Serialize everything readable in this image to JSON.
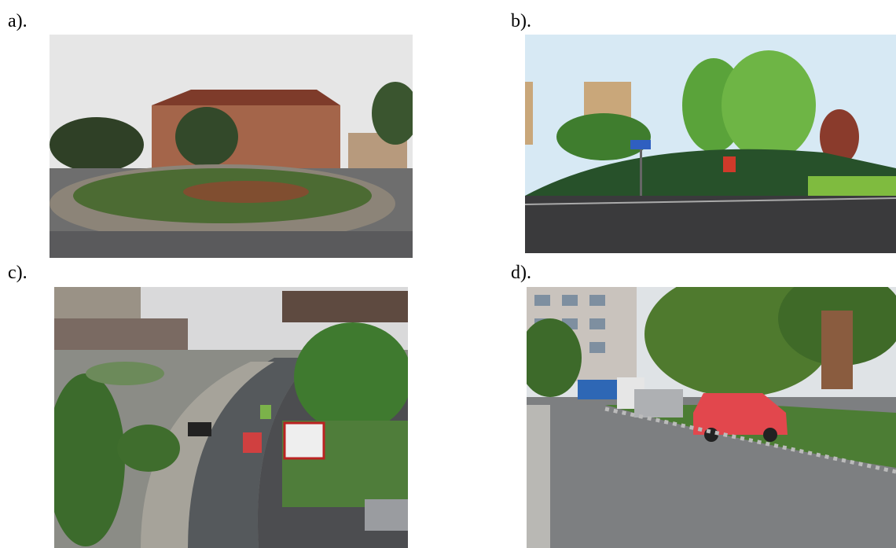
{
  "panels": [
    {
      "label": "a)."
    },
    {
      "label": "b)."
    },
    {
      "label": "c)."
    },
    {
      "label": "d)."
    }
  ]
}
